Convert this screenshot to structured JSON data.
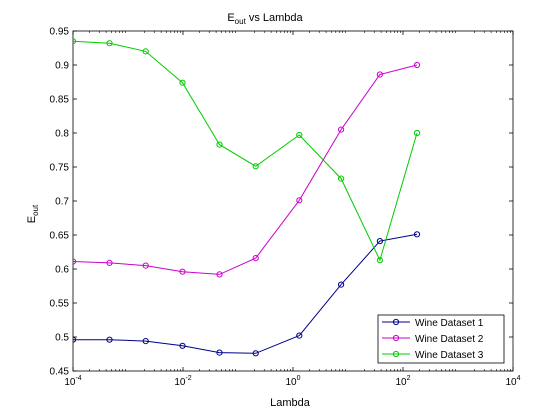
{
  "chart_data": {
    "type": "line",
    "title_main": "E",
    "title_sub": "out",
    "title_rest": " vs Lambda",
    "xlabel": "Lambda",
    "ylabel_main": "E",
    "ylabel_sub": "out",
    "x_scale": "log",
    "xlim": [
      0.0001,
      10000
    ],
    "ylim": [
      0.45,
      0.95
    ],
    "x_ticks": [
      {
        "value": 0.0001,
        "base": "10",
        "exp": "-4"
      },
      {
        "value": 0.01,
        "base": "10",
        "exp": "-2"
      },
      {
        "value": 1,
        "base": "10",
        "exp": "0"
      },
      {
        "value": 100,
        "base": "10",
        "exp": "2"
      },
      {
        "value": 10000,
        "base": "10",
        "exp": "4"
      }
    ],
    "y_ticks": [
      {
        "value": 0.45,
        "label": "0.45"
      },
      {
        "value": 0.5,
        "label": "0.5"
      },
      {
        "value": 0.55,
        "label": "0.55"
      },
      {
        "value": 0.6,
        "label": "0.6"
      },
      {
        "value": 0.65,
        "label": "0.65"
      },
      {
        "value": 0.7,
        "label": "0.7"
      },
      {
        "value": 0.75,
        "label": "0.75"
      },
      {
        "value": 0.8,
        "label": "0.8"
      },
      {
        "value": 0.85,
        "label": "0.85"
      },
      {
        "value": 0.9,
        "label": "0.9"
      },
      {
        "value": 0.95,
        "label": "0.95"
      }
    ],
    "grid": false,
    "legend_position": "bottom-right",
    "x": [
      0.0001,
      0.00046,
      0.0021,
      0.0098,
      0.046,
      0.21,
      1.3,
      7.5,
      38,
      180
    ],
    "series": [
      {
        "name": "Wine Dataset 1",
        "color": "#00008b",
        "values": [
          0.496,
          0.496,
          0.494,
          0.487,
          0.477,
          0.476,
          0.502,
          0.577,
          0.641,
          0.651
        ]
      },
      {
        "name": "Wine Dataset 2",
        "color": "#cc00cc",
        "values": [
          0.611,
          0.609,
          0.605,
          0.596,
          0.592,
          0.616,
          0.701,
          0.805,
          0.886,
          0.9
        ]
      },
      {
        "name": "Wine Dataset 3",
        "color": "#00cc00",
        "values": [
          0.935,
          0.932,
          0.92,
          0.874,
          0.783,
          0.751,
          0.797,
          0.733,
          0.613,
          0.8
        ]
      }
    ]
  }
}
